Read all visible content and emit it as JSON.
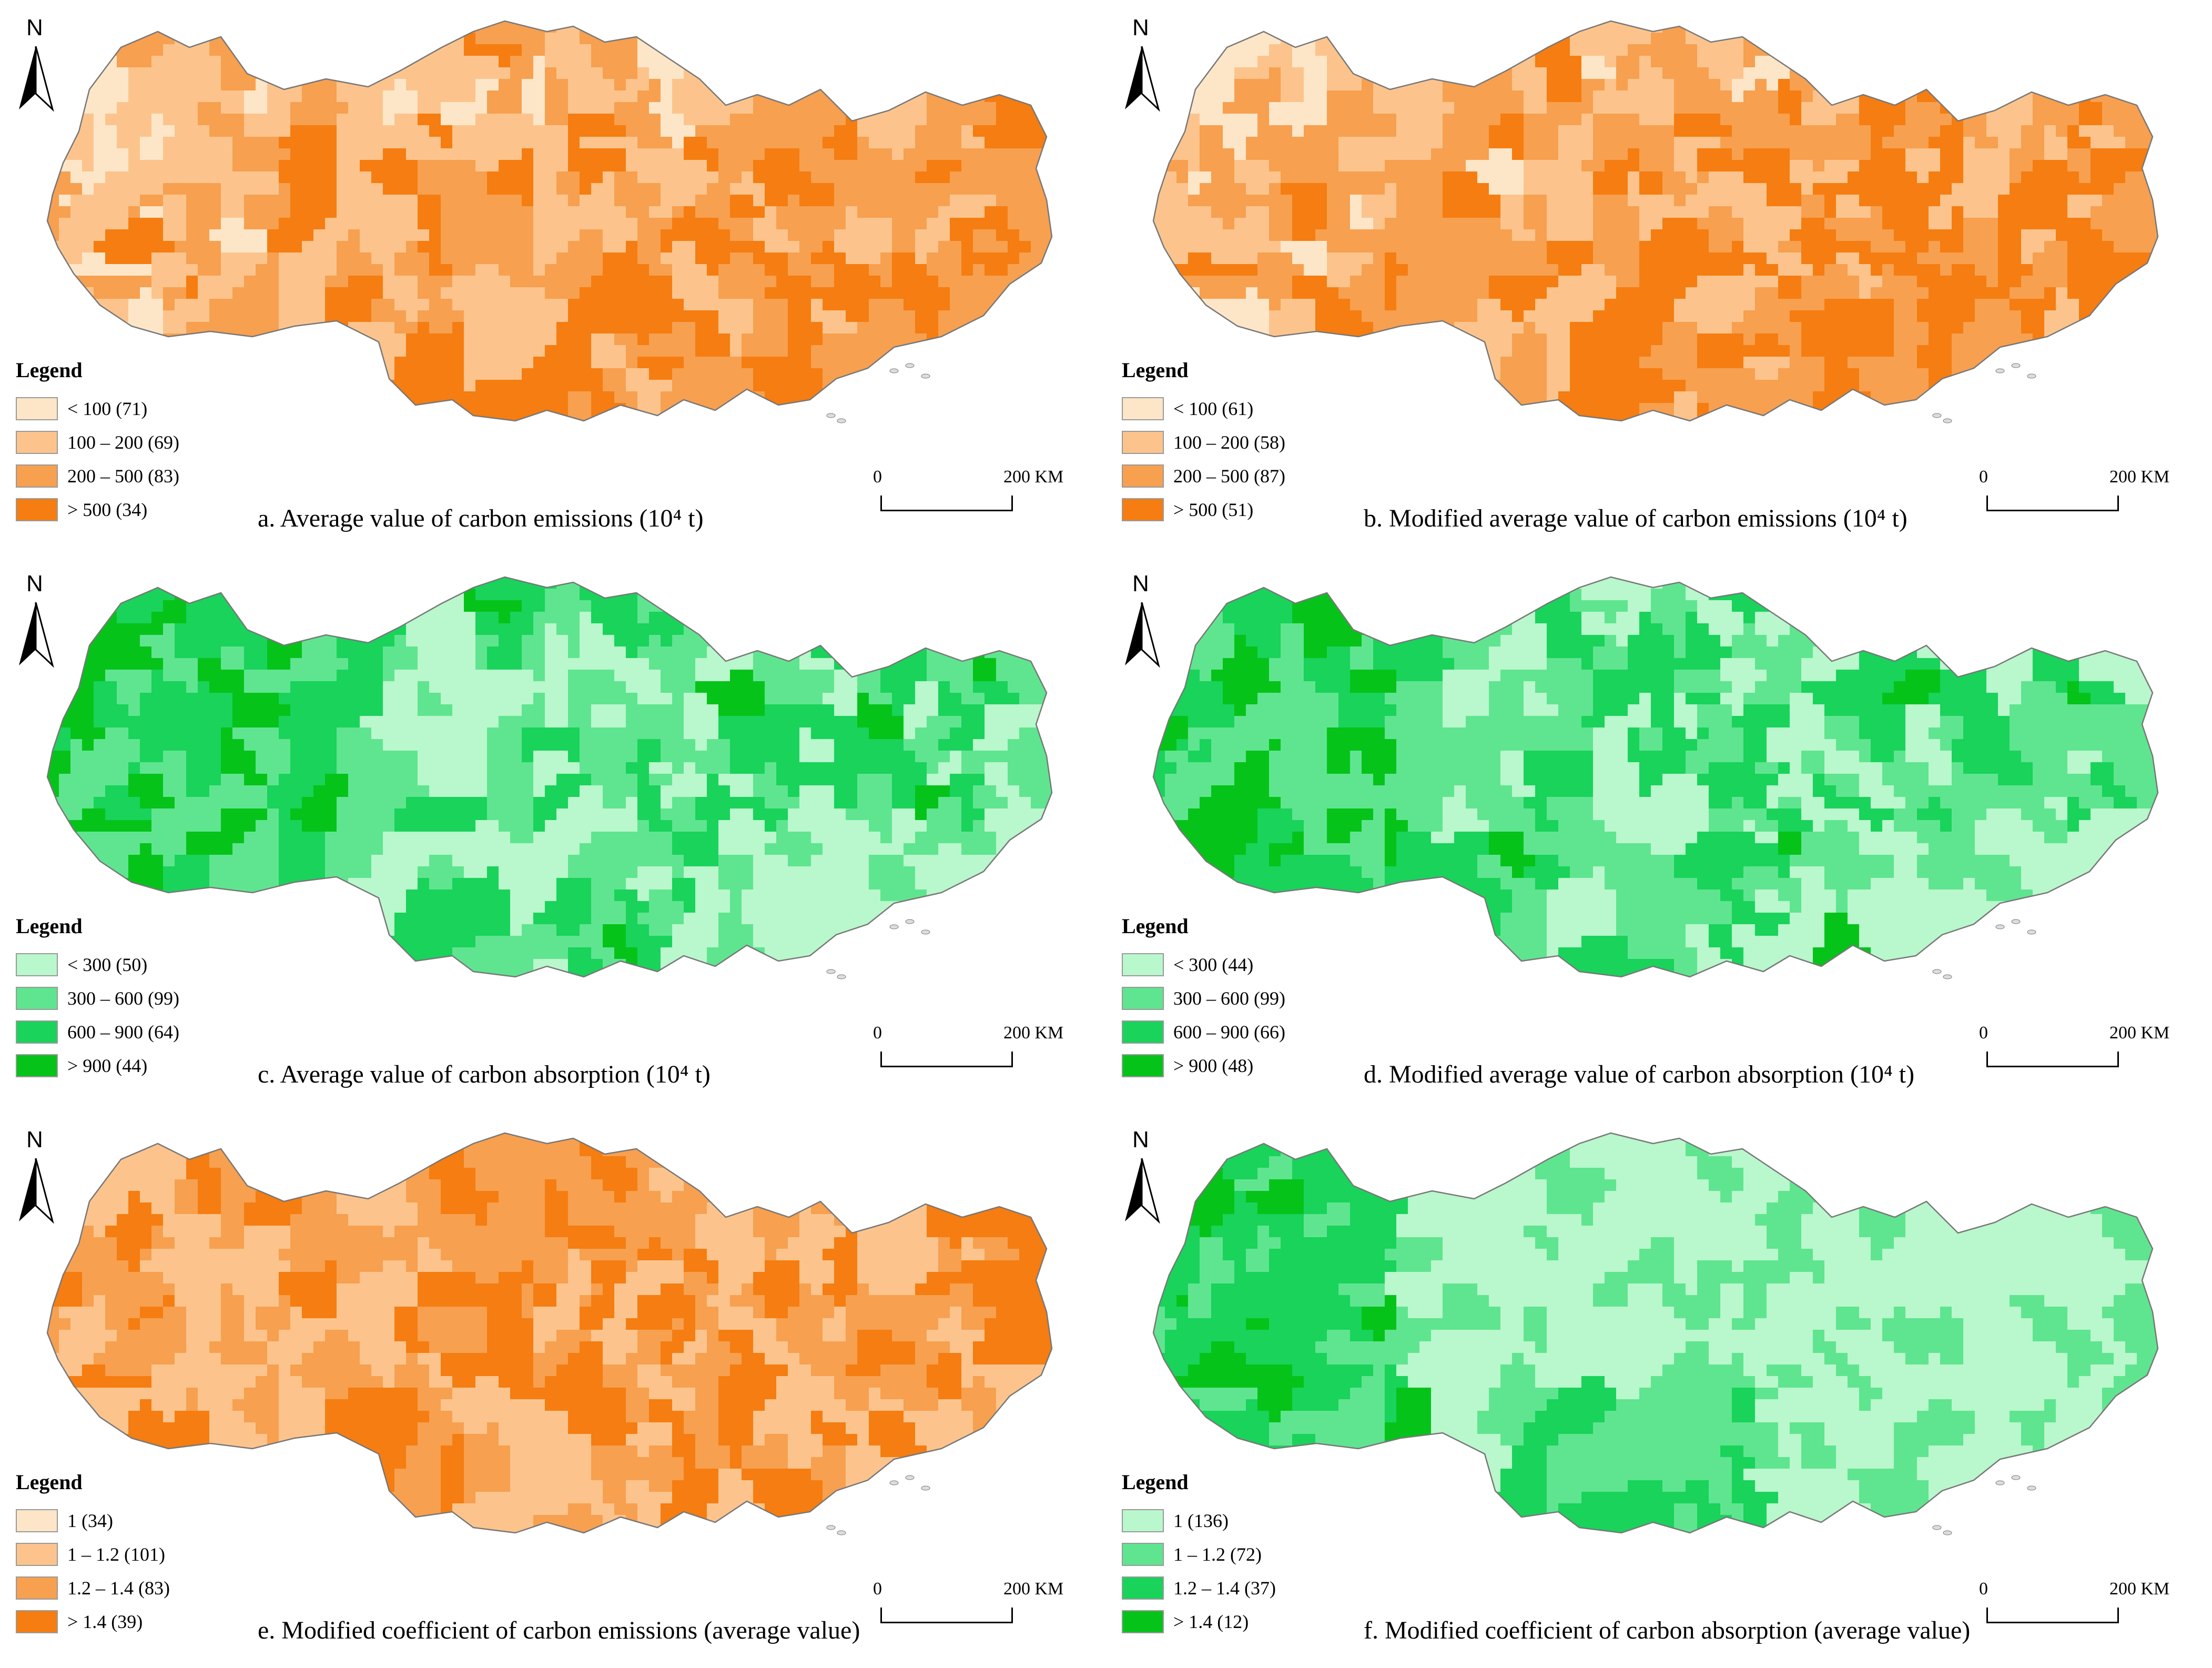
{
  "north_label": "N",
  "legend_title": "Legend",
  "scale": {
    "start": "0",
    "end": "200 KM"
  },
  "panels": [
    {
      "caption": "a. Average value of carbon emissions (10⁴ t)",
      "palette": "orange",
      "classes": [
        {
          "label": "< 100 (71)",
          "color": "#FDE6C8"
        },
        {
          "label": "100 – 200 (69)",
          "color": "#FCC48C"
        },
        {
          "label": "200 – 500 (83)",
          "color": "#F7A050"
        },
        {
          "label": "> 500 (34)",
          "color": "#F57D11"
        }
      ]
    },
    {
      "caption": "b. Modified average value of carbon emissions (10⁴ t)",
      "palette": "orange",
      "classes": [
        {
          "label": "< 100 (61)",
          "color": "#FDE6C8"
        },
        {
          "label": "100 – 200 (58)",
          "color": "#FCC48C"
        },
        {
          "label": "200 – 500 (87)",
          "color": "#F7A050"
        },
        {
          "label": "> 500 (51)",
          "color": "#F57D11"
        }
      ]
    },
    {
      "caption": "c. Average value of carbon absorption (10⁴ t)",
      "palette": "green",
      "classes": [
        {
          "label": "< 300 (50)",
          "color": "#B9F7CC"
        },
        {
          "label": "300 – 600 (99)",
          "color": "#5FE58F"
        },
        {
          "label": "600 – 900 (64)",
          "color": "#19D35B"
        },
        {
          "label": "> 900 (44)",
          "color": "#06C31A"
        }
      ]
    },
    {
      "caption": "d. Modified average value of carbon absorption (10⁴ t)",
      "palette": "green",
      "classes": [
        {
          "label": "< 300 (44)",
          "color": "#B9F7CC"
        },
        {
          "label": "300 – 600 (99)",
          "color": "#5FE58F"
        },
        {
          "label": "600 – 900 (66)",
          "color": "#19D35B"
        },
        {
          "label": "> 900 (48)",
          "color": "#06C31A"
        }
      ]
    },
    {
      "caption": "e. Modified coefficient of carbon emissions (average value)",
      "palette": "orange",
      "classes": [
        {
          "label": "1 (34)",
          "color": "#FDE6C8"
        },
        {
          "label": "1 – 1.2 (101)",
          "color": "#FCC48C"
        },
        {
          "label": "1.2 – 1.4 (83)",
          "color": "#F7A050"
        },
        {
          "label": "> 1.4 (39)",
          "color": "#F57D11"
        }
      ]
    },
    {
      "caption": "f. Modified coefficient of carbon absorption (average value)",
      "palette": "green",
      "classes": [
        {
          "label": "1 (136)",
          "color": "#B9F7CC"
        },
        {
          "label": "1 – 1.2 (72)",
          "color": "#5FE58F"
        },
        {
          "label": "1.2 – 1.4 (37)",
          "color": "#19D35B"
        },
        {
          "label": "> 1.4 (12)",
          "color": "#06C31A"
        }
      ]
    }
  ]
}
